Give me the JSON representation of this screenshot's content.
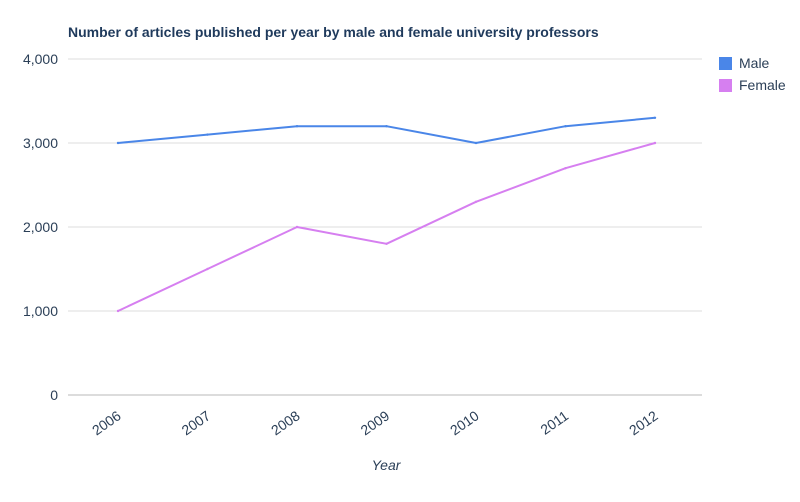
{
  "chart_data": {
    "type": "line",
    "title": "Number of articles published per year by male and female university professors",
    "xlabel": "Year",
    "ylabel": "",
    "categories": [
      "2006",
      "2007",
      "2008",
      "2009",
      "2010",
      "2011",
      "2012"
    ],
    "ylim": [
      0,
      4000
    ],
    "yticks": [
      "0",
      "1,000",
      "2,000",
      "3,000",
      "4,000"
    ],
    "ytick_values": [
      0,
      1000,
      2000,
      3000,
      4000
    ],
    "grid": true,
    "legend_position": "right",
    "series": [
      {
        "name": "Male",
        "color": "#4a86e8",
        "values": [
          3000,
          3100,
          3200,
          3200,
          3000,
          3200,
          3300
        ]
      },
      {
        "name": "Female",
        "color": "#d67ff0",
        "values": [
          1000,
          1500,
          2000,
          1800,
          2300,
          2700,
          3000
        ]
      }
    ]
  }
}
